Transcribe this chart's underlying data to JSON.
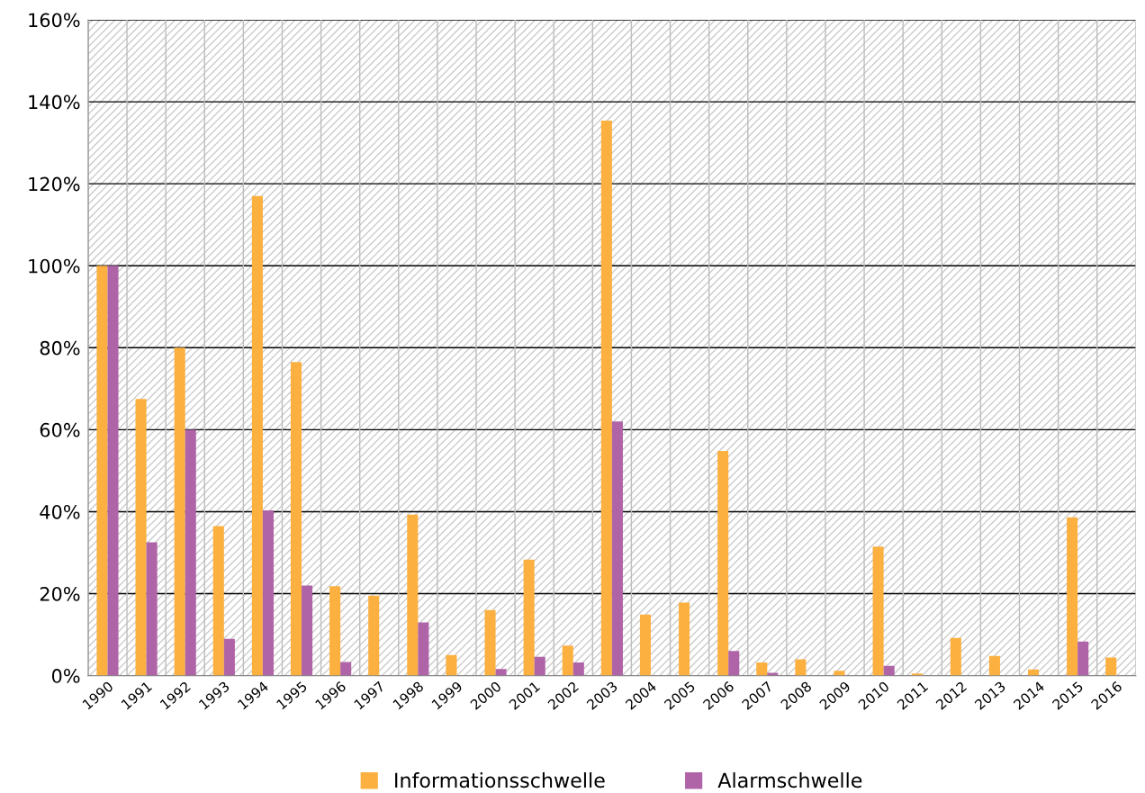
{
  "chart_data": {
    "type": "bar",
    "categories": [
      "1990",
      "1991",
      "1992",
      "1993",
      "1994",
      "1995",
      "1996",
      "1997",
      "1998",
      "1999",
      "2000",
      "2001",
      "2002",
      "2003",
      "2004",
      "2005",
      "2006",
      "2007",
      "2008",
      "2009",
      "2010",
      "2011",
      "2012",
      "2013",
      "2014",
      "2015",
      "2016"
    ],
    "series": [
      {
        "name": "Informationsschwelle",
        "color": "#fbb040",
        "values": [
          100,
          67.5,
          80,
          36.5,
          117,
          76.5,
          21.8,
          19.5,
          39.3,
          5,
          16,
          28.3,
          7.3,
          135.4,
          14.9,
          17.8,
          54.8,
          3.2,
          4,
          1.2,
          31.5,
          0.5,
          9.2,
          4.8,
          1.5,
          38.6,
          4.4
        ]
      },
      {
        "name": "Alarmschwelle",
        "color": "#b064a8",
        "values": [
          100,
          32.5,
          60,
          9,
          40.3,
          22,
          3.3,
          0,
          13,
          0,
          1.6,
          4.6,
          3.2,
          62,
          0,
          null,
          6,
          0.7,
          0,
          0,
          2.4,
          0,
          0,
          0,
          0,
          8.3,
          0
        ]
      }
    ],
    "ylim": [
      0,
      160
    ],
    "yticks": [
      {
        "value": 0,
        "label": "0%"
      },
      {
        "value": 20,
        "label": "20%"
      },
      {
        "value": 40,
        "label": "40%"
      },
      {
        "value": 60,
        "label": "60%"
      },
      {
        "value": 80,
        "label": "80%"
      },
      {
        "value": 100,
        "label": "100%"
      },
      {
        "value": 120,
        "label": "120%"
      },
      {
        "value": 140,
        "label": "140%"
      },
      {
        "value": 160,
        "label": "160%"
      }
    ],
    "grid": true,
    "legend": "bottom"
  }
}
